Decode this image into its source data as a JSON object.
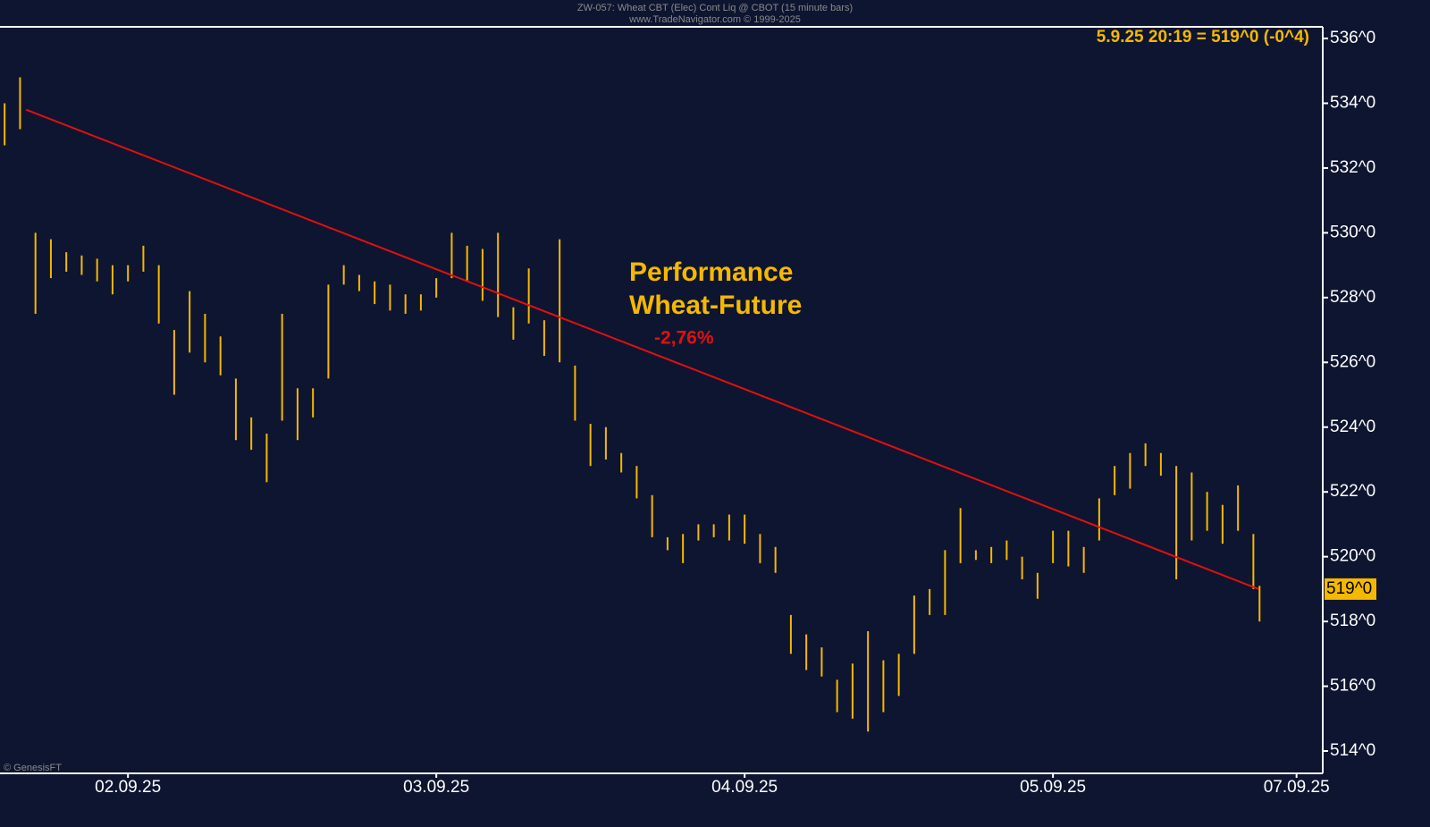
{
  "chart_data": {
    "type": "range-bar",
    "title": "ZW-057:  Wheat CBT (Elec) Cont Liq @ CBOT  (15 minute bars)",
    "subtitle": "www.TradeNavigator.com © 1999-2025",
    "quote": "5.9.25 20:19 = 519^0 (-0^4)",
    "credit": "© GenesisFT",
    "annotations": [
      "Performance",
      "Wheat-Future",
      "-2,76%"
    ],
    "color": "#f5b800",
    "xlim": [
      1.585,
      5.875
    ],
    "ylim": [
      513.31,
      536.36
    ],
    "xticks": [
      {
        "value": 2,
        "label": "02.09.25"
      },
      {
        "value": 3,
        "label": "03.09.25"
      },
      {
        "value": 4,
        "label": "04.09.25"
      },
      {
        "value": 5,
        "label": "05.09.25"
      },
      {
        "value": 5.79,
        "label": "07.09.25"
      }
    ],
    "yticks": [
      {
        "value": 514,
        "label": "514^0"
      },
      {
        "value": 516,
        "label": "516^0"
      },
      {
        "value": 518,
        "label": "518^0"
      },
      {
        "value": 520,
        "label": "520^0"
      },
      {
        "value": 522,
        "label": "522^0"
      },
      {
        "value": 524,
        "label": "524^0"
      },
      {
        "value": 526,
        "label": "526^0"
      },
      {
        "value": 528,
        "label": "528^0"
      },
      {
        "value": 530,
        "label": "530^0"
      },
      {
        "value": 532,
        "label": "532^0"
      },
      {
        "value": 534,
        "label": "534^0"
      },
      {
        "value": 536,
        "label": "536^0"
      }
    ],
    "last_price": {
      "value": 519,
      "label": "519^0"
    },
    "trendline": {
      "x": [
        1.67,
        5.667
      ],
      "values": [
        533.8,
        519.0
      ],
      "color": "#e01010"
    },
    "x": [
      1.6,
      1.65,
      1.7,
      1.75,
      1.8,
      1.85,
      1.9,
      1.95,
      2.0,
      2.05,
      2.1,
      2.15,
      2.2,
      2.25,
      2.3,
      2.35,
      2.4,
      2.45,
      2.5,
      2.55,
      2.6,
      2.65,
      2.7,
      2.75,
      2.8,
      2.85,
      2.9,
      2.95,
      3.0,
      3.05,
      3.1,
      3.15,
      3.2,
      3.25,
      3.3,
      3.35,
      3.4,
      3.45,
      3.5,
      3.55,
      3.6,
      3.65,
      3.7,
      3.75,
      3.8,
      3.85,
      3.9,
      3.95,
      4.0,
      4.05,
      4.1,
      4.15,
      4.2,
      4.25,
      4.3,
      4.35,
      4.4,
      4.45,
      4.5,
      4.55,
      4.6,
      4.65,
      4.7,
      4.75,
      4.8,
      4.85,
      4.9,
      4.95,
      5.0,
      5.05,
      5.1,
      5.15,
      5.2,
      5.25,
      5.3,
      5.35,
      5.4,
      5.45,
      5.5,
      5.55,
      5.6,
      5.65,
      5.67
    ],
    "high": [
      534.0,
      534.8,
      530.0,
      529.8,
      529.4,
      529.3,
      529.2,
      529.0,
      529.0,
      529.6,
      529.0,
      527.0,
      528.2,
      527.5,
      526.8,
      525.5,
      524.3,
      523.8,
      527.5,
      525.2,
      525.2,
      528.4,
      529.0,
      528.7,
      528.5,
      528.4,
      528.1,
      528.1,
      528.6,
      530.0,
      529.6,
      529.5,
      530.0,
      527.7,
      528.9,
      527.3,
      529.8,
      525.9,
      524.1,
      524.0,
      523.2,
      522.8,
      521.9,
      520.6,
      520.7,
      521.0,
      521.0,
      521.3,
      521.3,
      520.7,
      520.3,
      518.2,
      517.6,
      517.2,
      516.2,
      516.7,
      517.7,
      516.8,
      517.0,
      518.8,
      519.0,
      520.2,
      521.5,
      520.2,
      520.3,
      520.5,
      520.0,
      519.5,
      520.8,
      520.8,
      520.3,
      521.8,
      522.8,
      523.2,
      523.5,
      523.2,
      522.8,
      522.6,
      522.0,
      521.6,
      522.2,
      520.7,
      519.1
    ],
    "low": [
      532.7,
      533.2,
      527.5,
      528.6,
      528.8,
      528.7,
      528.5,
      528.1,
      528.5,
      528.8,
      527.2,
      525.0,
      526.3,
      526.0,
      525.6,
      523.6,
      523.3,
      522.3,
      524.2,
      523.6,
      524.3,
      525.5,
      528.4,
      528.2,
      527.8,
      527.6,
      527.5,
      527.6,
      528.0,
      528.6,
      528.5,
      527.9,
      527.4,
      526.7,
      527.2,
      526.2,
      526.0,
      524.2,
      522.8,
      523.0,
      522.6,
      521.8,
      520.6,
      520.2,
      519.8,
      520.5,
      520.6,
      520.5,
      520.4,
      519.8,
      519.5,
      517.0,
      516.5,
      516.3,
      515.2,
      515.0,
      514.6,
      515.2,
      515.7,
      517.0,
      518.2,
      518.2,
      519.8,
      519.9,
      519.8,
      519.9,
      519.3,
      518.7,
      519.8,
      519.7,
      519.5,
      520.5,
      521.9,
      522.1,
      522.8,
      522.5,
      519.3,
      520.5,
      520.8,
      520.4,
      520.8,
      519.0,
      518.0
    ]
  }
}
